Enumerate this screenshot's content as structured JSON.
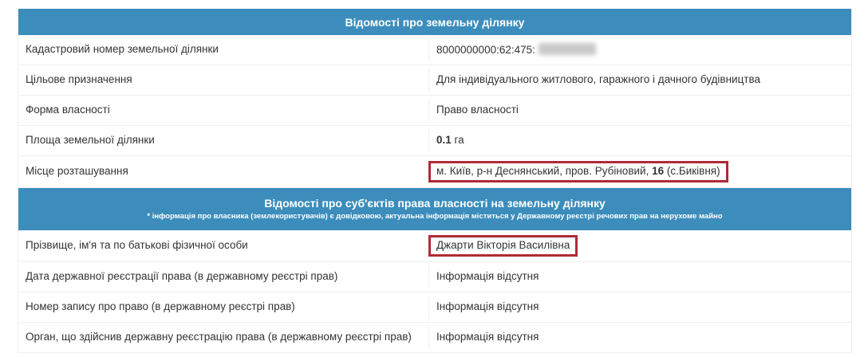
{
  "colors": {
    "header_bg": "#3c8dbc",
    "highlight_border": "#b02a37"
  },
  "parcel_section": {
    "title": "Відомості про земельну ділянку",
    "rows": [
      {
        "label": "Кадастровий номер земельної ділянки",
        "value": "8000000000:62:475:",
        "redacted_suffix": true
      },
      {
        "label": "Цільове призначення",
        "value": "Для індивідуального житлового, гаражного і дачного будівництва"
      },
      {
        "label": "Форма власності",
        "value": "Право власності"
      },
      {
        "label": "Площа земельної ділянки",
        "value_bold": "0.1",
        "value_after": " га"
      },
      {
        "label": "Місце розташування",
        "value_before": "м. Київ, р-н Деснянський, пров. Рубіновий, ",
        "value_bold": "16",
        "value_after": " (с.Биківня)",
        "highlighted": true
      }
    ]
  },
  "owners_section": {
    "title": "Відомості про суб'єктів права власності на земельну ділянку",
    "note": "* інформація про власника (землекористувачів) є довідковою, актуальна інформація міститься у Державному реєстрі речових прав на нерухоме майно",
    "rows": [
      {
        "label": "Прізвище, ім'я та по батькові фізичної особи",
        "value": "Джарти Вікторія Василівна",
        "highlighted": true
      },
      {
        "label": "Дата державної реєстрації права (в державному реєстрі прав)",
        "value": "Інформація відсутня"
      },
      {
        "label": "Номер запису про право (в державному реєстрі прав)",
        "value": "Інформація відсутня"
      },
      {
        "label": "Орган, що здійснив державну реєстрацію права (в державному реєстрі прав)",
        "value": "Інформація відсутня"
      }
    ]
  }
}
